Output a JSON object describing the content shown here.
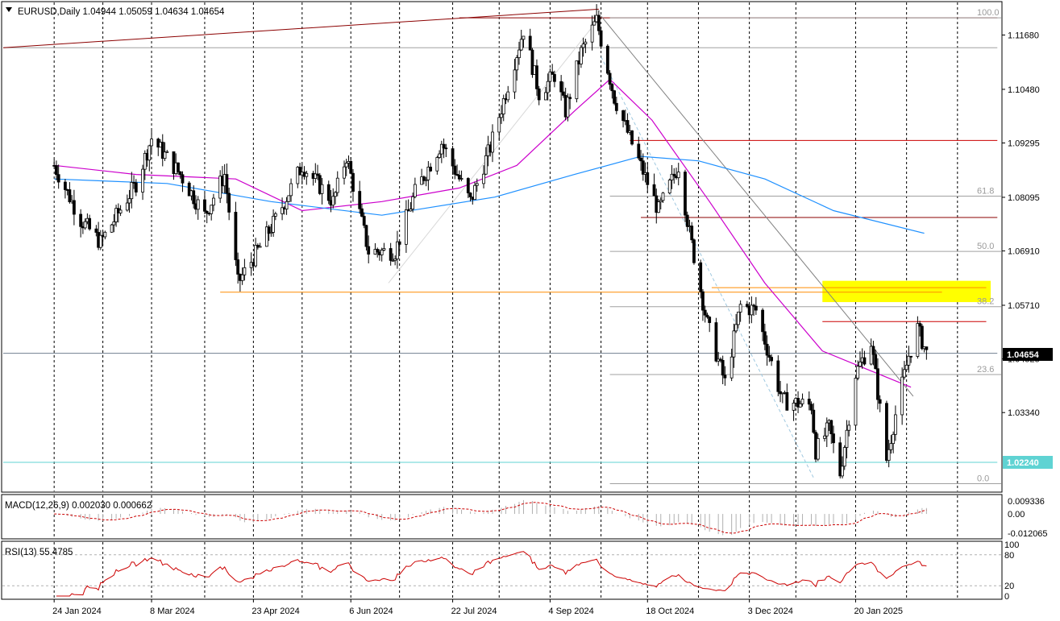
{
  "header": {
    "symbol_line": "EURUSD,Daily  1.04944 1.05059 1.04634 1.04654",
    "collapse_icon": "triangle-down-icon"
  },
  "colors": {
    "background": "#ffffff",
    "grid": "#000000",
    "bull_body": "#ffffff",
    "bear_body": "#000000",
    "ma_fast": "#cc00cc",
    "ma_slow": "#1e90ff",
    "resistance": "#8b0000",
    "support_orange": "#ff8c00",
    "fib": "#a0a0a0",
    "zone": "#ffff00",
    "macd": "#cc0000",
    "rsi": "#cc0000",
    "price_tag_bg": "#000000",
    "cyan_tag_bg": "#5fd3d3",
    "low_line": "#0000cc"
  },
  "price_axis": {
    "labels": [
      "1.11680",
      "1.10480",
      "1.09295",
      "1.08095",
      "1.06910",
      "1.05710",
      "1.04525",
      "1.03340"
    ],
    "current_price_tag": "1.04654",
    "cyan_level_tag": "1.02240"
  },
  "fibonacci": {
    "levels": [
      {
        "label": "100.0",
        "price": 1.1206
      },
      {
        "label": "61.8",
        "price": 1.0812
      },
      {
        "label": "50.0",
        "price": 1.069
      },
      {
        "label": "38.2",
        "price": 1.0568
      },
      {
        "label": "23.6",
        "price": 1.0418
      },
      {
        "label": "0.0",
        "price": 1.0177
      }
    ]
  },
  "time_axis": {
    "labels": [
      "24 Jan 2024",
      "8 Mar 2024",
      "23 Apr 2024",
      "6 Jun 2024",
      "22 Jul 2024",
      "4 Sep 2024",
      "18 Oct 2024",
      "3 Dec 2024",
      "20 Jan 2025"
    ]
  },
  "macd_panel": {
    "label": "MACD(12,26,9) 0.002030 0.000662",
    "axis_labels": [
      "0.009336",
      "0.00",
      "-0.012065"
    ]
  },
  "rsi_panel": {
    "label": "RSI(13) 55.4785",
    "axis_labels": [
      "100",
      "80",
      "20",
      "0"
    ]
  },
  "chart_data": {
    "type": "candlestick",
    "symbol": "EURUSD",
    "timeframe": "Daily",
    "ohlc_last": {
      "open": 1.04944,
      "high": 1.05059,
      "low": 1.04634,
      "close": 1.04654
    },
    "x_range": [
      "2024-01-24",
      "2025-02-10"
    ],
    "ylim": [
      1.016,
      1.124
    ],
    "close_path": [
      [
        "2024-01-24",
        1.088
      ],
      [
        "2024-02-05",
        1.076
      ],
      [
        "2024-02-14",
        1.071
      ],
      [
        "2024-03-01",
        1.084
      ],
      [
        "2024-03-08",
        1.094
      ],
      [
        "2024-03-21",
        1.086
      ],
      [
        "2024-04-01",
        1.077
      ],
      [
        "2024-04-10",
        1.086
      ],
      [
        "2024-04-16",
        1.062
      ],
      [
        "2024-04-26",
        1.07
      ],
      [
        "2024-05-03",
        1.076
      ],
      [
        "2024-05-15",
        1.088
      ],
      [
        "2024-05-29",
        1.08
      ],
      [
        "2024-06-04",
        1.09
      ],
      [
        "2024-06-14",
        1.069
      ],
      [
        "2024-06-26",
        1.069
      ],
      [
        "2024-07-05",
        1.082
      ],
      [
        "2024-07-17",
        1.093
      ],
      [
        "2024-07-30",
        1.08
      ],
      [
        "2024-08-08",
        1.092
      ],
      [
        "2024-08-23",
        1.118
      ],
      [
        "2024-08-30",
        1.104
      ],
      [
        "2024-09-06",
        1.108
      ],
      [
        "2024-09-11",
        1.1
      ],
      [
        "2024-09-18",
        1.113
      ],
      [
        "2024-09-25",
        1.12
      ],
      [
        "2024-10-03",
        1.103
      ],
      [
        "2024-10-10",
        1.094
      ],
      [
        "2024-10-23",
        1.078
      ],
      [
        "2024-11-01",
        1.088
      ],
      [
        "2024-11-06",
        1.073
      ],
      [
        "2024-11-14",
        1.053
      ],
      [
        "2024-11-22",
        1.04
      ],
      [
        "2024-11-29",
        1.057
      ],
      [
        "2024-12-06",
        1.056
      ],
      [
        "2024-12-18",
        1.036
      ],
      [
        "2024-12-31",
        1.035
      ],
      [
        "2025-01-02",
        1.025
      ],
      [
        "2025-01-08",
        1.03
      ],
      [
        "2025-01-13",
        1.02
      ],
      [
        "2025-01-20",
        1.042
      ],
      [
        "2025-01-27",
        1.049
      ],
      [
        "2025-02-03",
        1.023
      ],
      [
        "2025-02-07",
        1.033
      ],
      [
        "2025-02-13",
        1.046
      ],
      [
        "2025-02-17",
        1.052
      ],
      [
        "2025-02-21",
        1.0465
      ]
    ],
    "moving_averages": [
      {
        "color": "#cc00cc",
        "points": [
          [
            "2024-01-24",
            1.088
          ],
          [
            "2024-03-01",
            1.086
          ],
          [
            "2024-04-15",
            1.085
          ],
          [
            "2024-05-15",
            1.078
          ],
          [
            "2024-06-20",
            1.08
          ],
          [
            "2024-07-25",
            1.083
          ],
          [
            "2024-08-20",
            1.088
          ],
          [
            "2024-09-15",
            1.1
          ],
          [
            "2024-10-01",
            1.107
          ],
          [
            "2024-10-20",
            1.098
          ],
          [
            "2024-11-15",
            1.08
          ],
          [
            "2024-12-10",
            1.062
          ],
          [
            "2025-01-05",
            1.047
          ],
          [
            "2025-01-25",
            1.043
          ],
          [
            "2025-02-14",
            1.039
          ]
        ]
      },
      {
        "color": "#1e90ff",
        "points": [
          [
            "2024-01-24",
            1.085
          ],
          [
            "2024-03-15",
            1.084
          ],
          [
            "2024-05-01",
            1.08
          ],
          [
            "2024-06-20",
            1.077
          ],
          [
            "2024-08-10",
            1.081
          ],
          [
            "2024-09-15",
            1.086
          ],
          [
            "2024-10-15",
            1.09
          ],
          [
            "2024-11-10",
            1.089
          ],
          [
            "2024-12-10",
            1.085
          ],
          [
            "2025-01-10",
            1.078
          ],
          [
            "2025-02-20",
            1.073
          ]
        ]
      }
    ],
    "horizontal_levels": [
      {
        "price": 1.1206,
        "color": "#8b0000",
        "from": "2024-07-25",
        "to": "2025-03-25"
      },
      {
        "price": 1.114,
        "color": "#a0a0a0",
        "from": "2024-01-01",
        "to": "2025-03-25"
      },
      {
        "price": 1.0935,
        "color": "#cc0000",
        "from": "2024-10-10",
        "to": "2025-03-25"
      },
      {
        "price": 1.0765,
        "color": "#8b0000",
        "from": "2024-10-15",
        "to": "2025-03-25"
      },
      {
        "price": 1.06,
        "color": "#ff8c00",
        "from": "2024-04-08",
        "to": "2025-02-28"
      },
      {
        "price": 1.061,
        "color": "#ff8c00",
        "from": "2024-11-16",
        "to": "2025-03-20"
      },
      {
        "price": 1.0535,
        "color": "#cc0000",
        "from": "2025-01-05",
        "to": "2025-03-20"
      },
      {
        "price": 1.0465,
        "color": "#708090",
        "from": "2024-01-01",
        "to": "2025-03-25"
      },
      {
        "price": 1.0224,
        "color": "#5fd3d3",
        "from": "2024-01-01",
        "to": "2025-03-25"
      },
      {
        "price": 1.0177,
        "color": "#0000cc",
        "from": "2024-12-20",
        "to": "2025-03-25"
      }
    ],
    "zone": {
      "from": "2025-01-05",
      "to": "2025-03-22",
      "price_top": 1.0625,
      "price_bottom": 1.0578,
      "color": "#ffff00"
    },
    "trendlines": [
      {
        "x1": "2024-01-01",
        "y1": 1.114,
        "x2": "2024-09-26",
        "y2": 1.1225,
        "color": "#8b0000"
      },
      {
        "x1": "2024-09-27",
        "y1": 1.121,
        "x2": "2025-02-15",
        "y2": 1.037,
        "color": "#808080"
      },
      {
        "x1": "2024-09-27",
        "y1": 1.112,
        "x2": "2025-01-01",
        "y2": 1.019,
        "color": "#9fc8e0"
      },
      {
        "x1": "2024-06-23",
        "y1": 1.062,
        "x2": "2024-09-27",
        "y2": 1.121,
        "color": "#d8d8d8"
      }
    ],
    "macd": {
      "value": 0.00203,
      "signal": 0.000662,
      "ylim": [
        -0.012065,
        0.009336
      ]
    },
    "rsi": {
      "value": 55.4785,
      "levels": [
        80,
        20
      ],
      "ylim": [
        0,
        100
      ]
    }
  }
}
